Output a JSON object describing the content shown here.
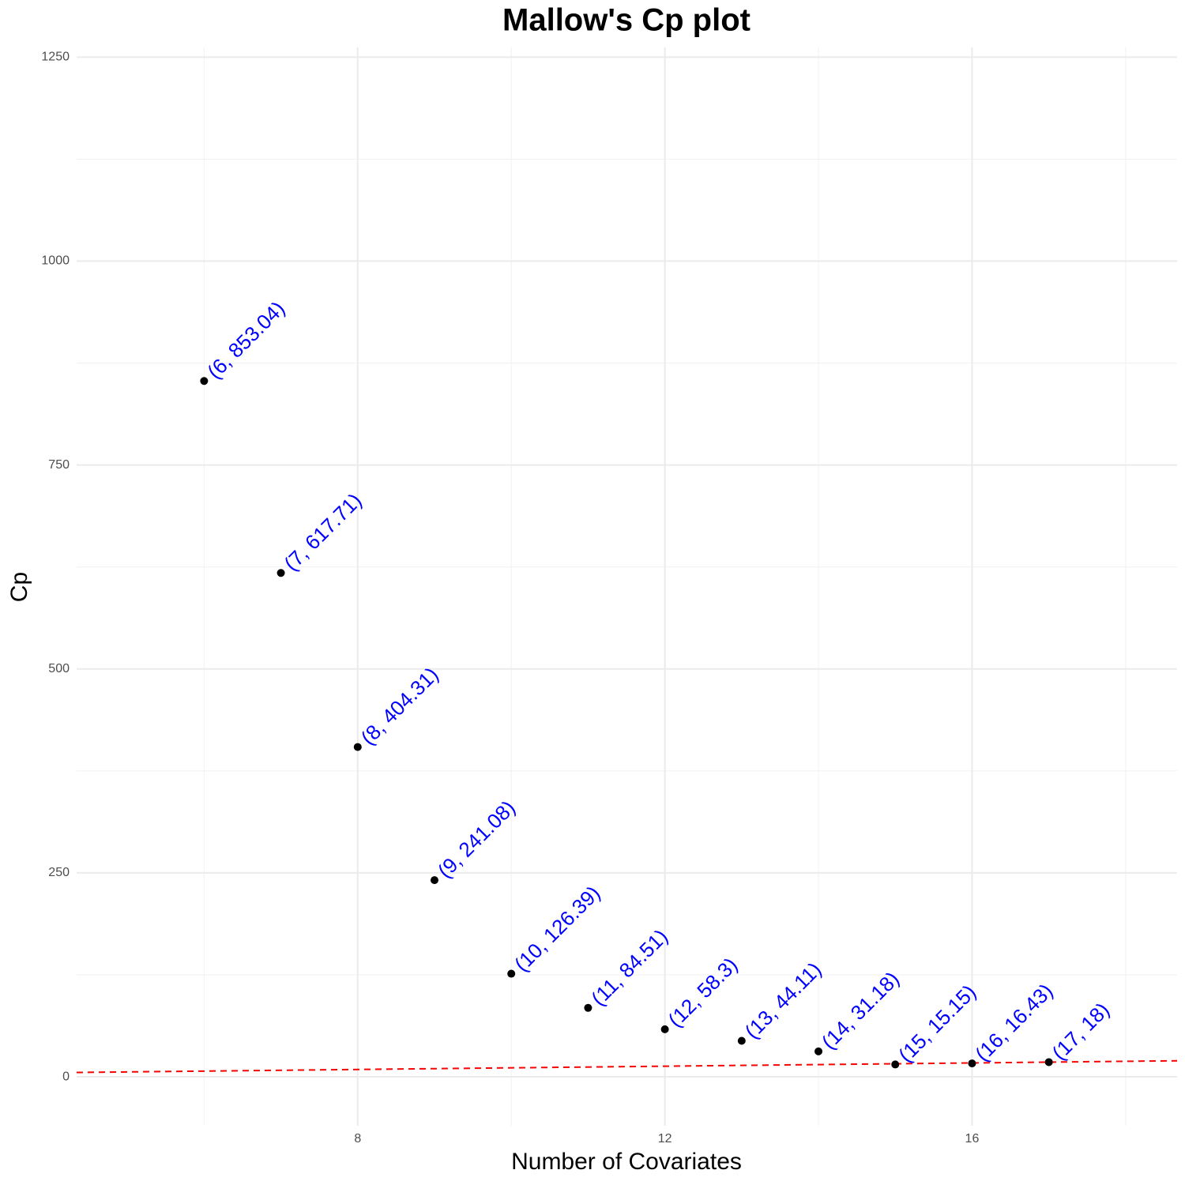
{
  "chart_data": {
    "type": "scatter",
    "title": "Mallow's Cp plot",
    "x_label": "Number of Covariates",
    "y_label": "Cp",
    "x": [
      6,
      7,
      8,
      9,
      10,
      11,
      12,
      13,
      14,
      15,
      16,
      17
    ],
    "values": [
      853.04,
      617.71,
      404.31,
      241.08,
      126.39,
      84.51,
      58.3,
      44.11,
      31.18,
      15.15,
      16.43,
      18
    ],
    "value_labels": [
      "(6, 853.04)",
      "(7, 617.71)",
      "(8, 404.31)",
      "(9, 241.08)",
      "(10, 126.39)",
      "(11, 84.51)",
      "(12, 58.3)",
      "(13, 44.11)",
      "(14, 31.18)",
      "(15, 15.15)",
      "(16, 16.43)",
      "(17, 18)"
    ],
    "color": "#000000",
    "label_color": "#0000ff",
    "xlim": [
      4.34,
      18.67
    ],
    "ylim": [
      -60,
      1262
    ],
    "xticks": [
      8,
      12,
      16
    ],
    "yticks": [
      0,
      250,
      500,
      750,
      1000,
      1250
    ],
    "grid": true,
    "minor_grid": true,
    "reference_line": {
      "intercept": 1,
      "slope": 1,
      "color": "#ff0000",
      "dashed": true
    }
  }
}
